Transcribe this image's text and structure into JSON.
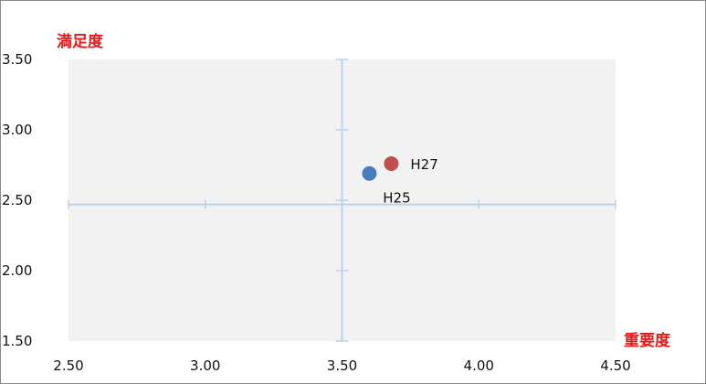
{
  "chart_data": {
    "type": "scatter",
    "xlabel": "重要度",
    "ylabel": "満足度",
    "xlim": [
      2.5,
      4.5
    ],
    "ylim": [
      1.5,
      3.5
    ],
    "x_ticks": [
      "2.50",
      "3.00",
      "3.50",
      "4.00",
      "4.50"
    ],
    "y_ticks": [
      "3.50",
      "3.00",
      "2.50",
      "2.00",
      "1.50"
    ],
    "x_tick_values": [
      2.5,
      3.0,
      3.5,
      4.0,
      4.5
    ],
    "y_tick_values": [
      3.5,
      3.0,
      2.5,
      2.0,
      1.5
    ],
    "axis_cross": {
      "x": 3.5,
      "y": 2.47
    },
    "points": [
      {
        "label": "H25",
        "x": 3.6,
        "y": 2.69,
        "color": "#4a7cc0"
      },
      {
        "label": "H27",
        "x": 3.68,
        "y": 2.76,
        "color": "#c0504d"
      }
    ],
    "plot_bg_color": "#f2f2f2",
    "axis_color": "#bcd2ec",
    "title_color": "#e41a1a"
  }
}
